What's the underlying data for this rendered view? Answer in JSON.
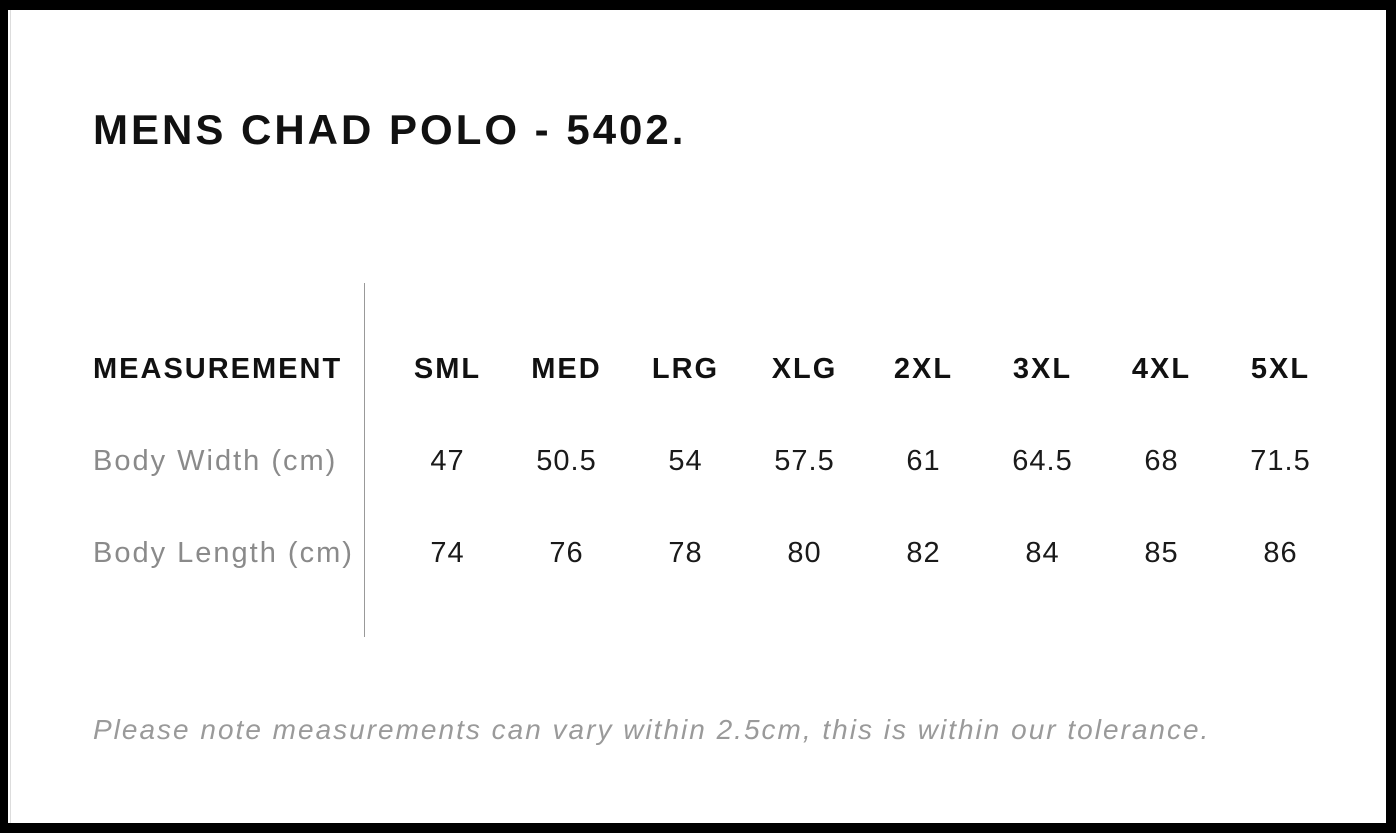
{
  "page": {
    "title": "MENS CHAD POLO - 5402."
  },
  "size_chart": {
    "measurement_header": "MEASUREMENT",
    "sizes": [
      "SML",
      "MED",
      "LRG",
      "XLG",
      "2XL",
      "3XL",
      "4XL",
      "5XL"
    ],
    "rows": [
      {
        "label": "Body Width (cm)",
        "values": [
          "47",
          "50.5",
          "54",
          "57.5",
          "61",
          "64.5",
          "68",
          "71.5"
        ]
      },
      {
        "label": "Body Length (cm)",
        "values": [
          "74",
          "76",
          "78",
          "80",
          "82",
          "84",
          "85",
          "86"
        ]
      }
    ]
  },
  "note": "Please note measurements can vary within 2.5cm, this is within our tolerance.",
  "colors": {
    "frame": "#000000",
    "background": "#ffffff",
    "heading_text": "#111111",
    "value_text": "#1a1a1a",
    "label_text": "#8a8a8a",
    "note_text": "#9a9a9a",
    "divider": "#999999"
  }
}
